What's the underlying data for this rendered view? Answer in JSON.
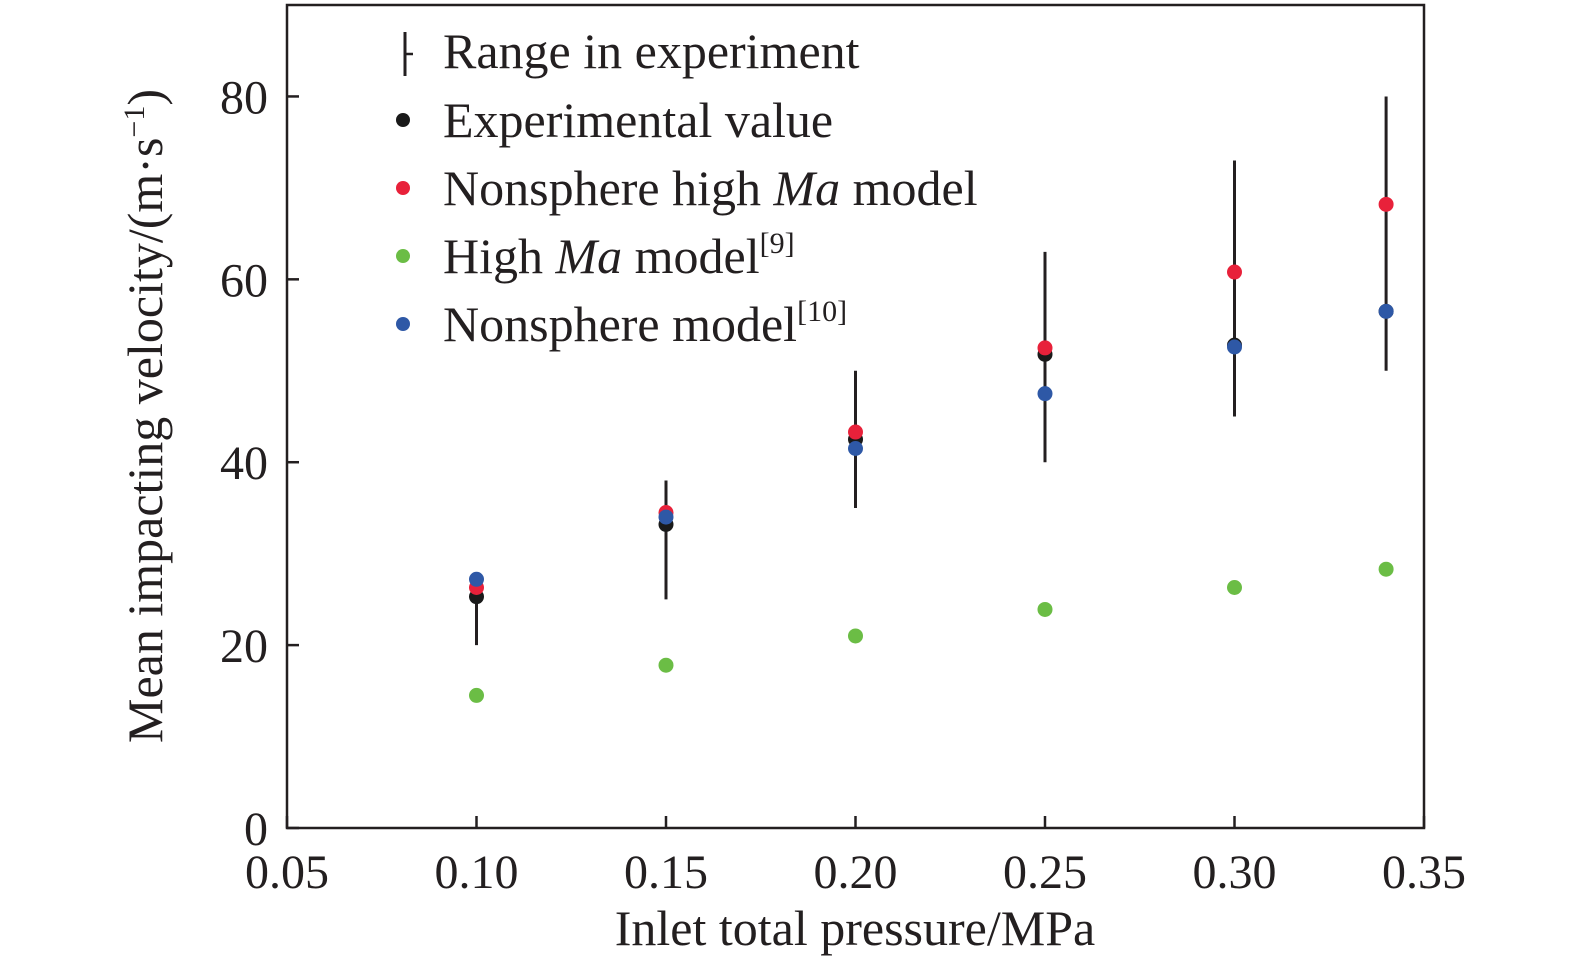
{
  "chart_data": {
    "type": "scatter",
    "xlabel": "Inlet total pressure/MPa",
    "ylabel": "Mean impacting velocity/(m·s",
    "ylabel_sup": "−1",
    "ylabel_close": ")",
    "xlim": [
      0.05,
      0.35
    ],
    "ylim": [
      0,
      90
    ],
    "xticks": [
      "0.05",
      "0.10",
      "0.15",
      "0.20",
      "0.25",
      "0.30",
      "0.35"
    ],
    "yticks": [
      "0",
      "20",
      "40",
      "60",
      "80"
    ],
    "legend_position": "top-left",
    "legend": {
      "range": "Range in experiment",
      "experimental": "Experimental value",
      "nonsphere_high_ma": {
        "pre": "Nonsphere high ",
        "italic": "Ma",
        "post": " model"
      },
      "high_ma": {
        "pre": "High ",
        "italic": "Ma",
        "post": " model",
        "sup": "[9]"
      },
      "nonsphere": {
        "pre": "Nonsphere model",
        "sup": "[10]"
      }
    },
    "x": [
      0.1,
      0.15,
      0.2,
      0.25,
      0.3,
      0.34
    ],
    "error_range": [
      [
        20,
        28
      ],
      [
        25,
        38
      ],
      [
        35,
        50
      ],
      [
        40,
        63
      ],
      [
        45,
        73
      ],
      [
        50,
        80
      ]
    ],
    "series": [
      {
        "key": "experimental",
        "color": "#1a1a1a",
        "values": [
          25.3,
          33.2,
          42.5,
          51.8,
          52.8,
          56.5
        ]
      },
      {
        "key": "nonsphere_high_ma",
        "color": "#e8213a",
        "values": [
          26.3,
          34.5,
          43.3,
          52.5,
          60.8,
          68.2
        ]
      },
      {
        "key": "high_ma",
        "color": "#6bbd45",
        "values": [
          14.5,
          17.8,
          21.0,
          23.9,
          26.3,
          28.3
        ]
      },
      {
        "key": "nonsphere",
        "color": "#2e58a6",
        "values": [
          27.2,
          34.0,
          41.5,
          47.5,
          52.6,
          56.5
        ]
      }
    ]
  }
}
